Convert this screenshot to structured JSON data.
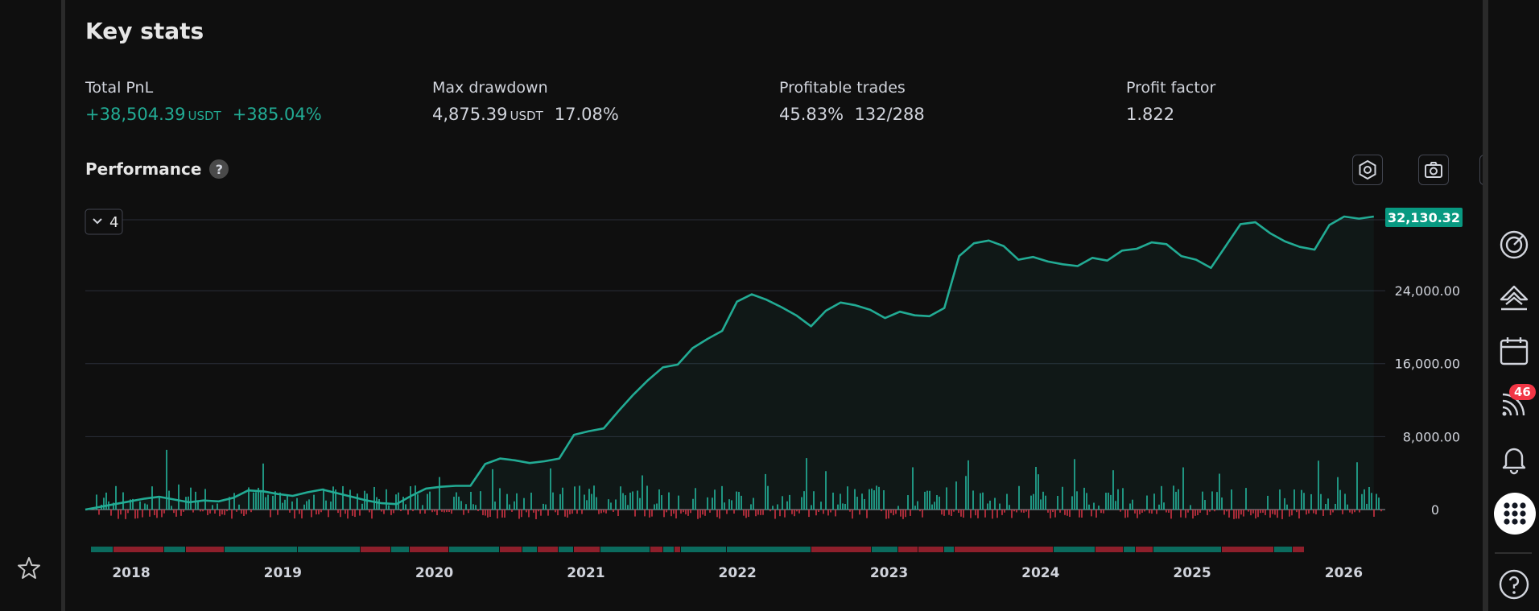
{
  "header": {
    "title": "Key stats"
  },
  "stats": {
    "total_pnl": {
      "label": "Total PnL",
      "value": "+38,504.39",
      "unit": "USDT",
      "percent": "+385.04%"
    },
    "max_drawdown": {
      "label": "Max drawdown",
      "value": "4,875.39",
      "unit": "USDT",
      "percent": "17.08%"
    },
    "profitable_trades": {
      "label": "Profitable trades",
      "percent": "45.83%",
      "ratio": "132/288"
    },
    "profit_factor": {
      "label": "Profit factor",
      "value": "1.822"
    }
  },
  "performance": {
    "title": "Performance",
    "help": "?",
    "series_dropdown": "4",
    "tools": [
      "settings-icon",
      "camera-icon",
      "fullscreen-icon"
    ]
  },
  "chart_data": {
    "type": "line",
    "series": [
      {
        "x": [
          2017.7,
          2017.8,
          2017.9,
          2018.0,
          2018.1,
          2018.2,
          2018.3,
          2018.4,
          2018.5,
          2018.6,
          2018.7,
          2018.8,
          2018.9,
          2019.0,
          2019.1,
          2019.2,
          2019.3,
          2019.4,
          2019.5,
          2019.6,
          2019.7,
          2019.8,
          2019.9,
          2020.0,
          2020.1,
          2020.2,
          2020.3,
          2020.4,
          2020.5,
          2020.6,
          2020.7,
          2020.8,
          2020.9,
          2021.0,
          2021.1,
          2021.2,
          2021.3,
          2021.4,
          2021.5,
          2021.6,
          2021.7,
          2021.8,
          2021.9,
          2022.0,
          2022.1,
          2022.2,
          2022.3,
          2022.4,
          2022.5,
          2022.6,
          2022.7,
          2022.8,
          2022.9,
          2023.0,
          2023.1,
          2023.2,
          2023.3,
          2023.4,
          2023.5,
          2023.6,
          2023.7,
          2023.8,
          2023.9,
          2024.0,
          2024.1,
          2024.2,
          2024.3,
          2024.4,
          2024.5,
          2024.6,
          2024.7,
          2024.8,
          2024.9,
          2025.0,
          2025.1,
          2025.2,
          2025.3,
          2025.4,
          2025.5,
          2025.6,
          2025.7,
          2025.8,
          2025.9,
          2026.0,
          2026.1,
          2026.2,
          2026.3,
          2026.4
        ],
        "y": [
          0,
          300,
          600,
          900,
          1200,
          1400,
          1100,
          800,
          1000,
          900,
          1300,
          2100,
          2000,
          1700,
          1500,
          1900,
          2200,
          1800,
          1400,
          1000,
          700,
          600,
          1500,
          2300,
          2500,
          2600,
          2600,
          5000,
          5600,
          5400,
          5100,
          5300,
          5600,
          8200,
          8600,
          8900,
          10800,
          12600,
          14200,
          15600,
          15900,
          17700,
          18700,
          19600,
          22800,
          23600,
          23000,
          22200,
          21300,
          20100,
          21800,
          22700,
          22400,
          21900,
          21000,
          21700,
          21300,
          21200,
          22100,
          27800,
          29200,
          29500,
          28900,
          27400,
          27700,
          27200,
          26900,
          26700,
          27600,
          27300,
          28400,
          28600,
          29300,
          29100,
          27800,
          27400,
          26500,
          28900,
          31300,
          31500,
          30300,
          29400,
          28800,
          28500,
          31200,
          32130,
          31900,
          32130
        ]
      }
    ],
    "y_ticks": [
      "0",
      "8,000.00",
      "16,000.00",
      "24,000.00"
    ],
    "last_value_label": "32,130.32",
    "x_ticks": [
      "2018",
      "2019",
      "2020",
      "2021",
      "2022",
      "2023",
      "2024",
      "2025",
      "2026"
    ],
    "ylim": [
      0,
      33000
    ],
    "grid": true,
    "colors": {
      "line": "#22ab94",
      "up_bar": "#22ab94",
      "down_bar": "#c2303f"
    }
  },
  "right_rail": {
    "notification_badge": "46",
    "icons": [
      "target-icon",
      "mountain-icon",
      "calendar-icon",
      "signal-icon",
      "bell-icon",
      "apps-grid-icon",
      "help-icon"
    ]
  },
  "left_rail": {
    "icons": [
      "star-icon"
    ]
  }
}
